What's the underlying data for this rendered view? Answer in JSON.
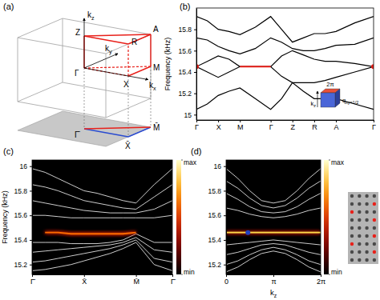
{
  "diagram": {
    "title": "(a)",
    "labels": [
      {
        "text": "Z"
      },
      {
        "text": "A"
      },
      {
        "text": "R"
      },
      {
        "text": "M"
      },
      {
        "text": "Γ"
      },
      {
        "text": "X"
      },
      {
        "text": "k",
        "sub": "z"
      },
      {
        "text": "k",
        "sub": "y"
      },
      {
        "text": "k",
        "sub": "x"
      },
      {
        "text": "Γ̄"
      },
      {
        "text": "X̄"
      },
      {
        "text": "M̄"
      }
    ]
  },
  "chart_data": [
    {
      "type": "line",
      "title": "(b)",
      "y_label": "Frequency (kHz)",
      "x": [
        0,
        0.5,
        1,
        1.5,
        2,
        2.707,
        3.414,
        3.914,
        4.414,
        4.914,
        5.414,
        5.914,
        6.414,
        7.28,
        8.146
      ],
      "xlim": [
        0,
        8.146
      ],
      "ylim": [
        14.95,
        16.0
      ],
      "xticks": [
        {
          "value": 0,
          "label": "Γ"
        },
        {
          "value": 1,
          "label": "X"
        },
        {
          "value": 2,
          "label": "M"
        },
        {
          "value": 3.414,
          "label": "Γ"
        },
        {
          "value": 4.414,
          "label": "Z"
        },
        {
          "value": 5.414,
          "label": "R"
        },
        {
          "value": 6.414,
          "label": "A"
        },
        {
          "value": 8.146,
          "label": "Γ"
        }
      ],
      "yticks": [
        15,
        15.2,
        15.4,
        15.6,
        15.8
      ],
      "series": [
        {
          "color": "#000000",
          "values": [
            15.92,
            15.88,
            15.8,
            15.78,
            15.75,
            15.82,
            15.92,
            15.8,
            15.68,
            15.72,
            15.76,
            15.76,
            15.78,
            15.86,
            15.92
          ]
        },
        {
          "color": "#000000",
          "values": [
            15.72,
            15.7,
            15.64,
            15.6,
            15.57,
            15.62,
            15.72,
            15.68,
            15.62,
            15.6,
            15.6,
            15.62,
            15.65,
            15.66,
            15.72
          ]
        },
        {
          "color": "#000000",
          "values": [
            15.45,
            15.5,
            15.55,
            15.52,
            15.45,
            15.45,
            15.45,
            15.55,
            15.6,
            15.56,
            15.52,
            15.5,
            15.5,
            15.48,
            15.45
          ]
        },
        {
          "color": "#000000",
          "values": [
            15.45,
            15.4,
            15.35,
            15.4,
            15.45,
            15.45,
            15.45,
            15.36,
            15.3,
            15.3,
            15.3,
            15.32,
            15.35,
            15.4,
            15.45
          ]
        },
        {
          "color": "#000000",
          "values": [
            15.05,
            15.1,
            15.18,
            15.22,
            15.25,
            15.15,
            15.05,
            15.15,
            15.3,
            15.22,
            15.15,
            15.15,
            15.15,
            15.1,
            15.05
          ]
        },
        {
          "color": "#e8201a",
          "x": [
            2,
            3.414
          ],
          "values": [
            15.45,
            15.45
          ]
        },
        {
          "type": "scatter",
          "color": "#e8201a",
          "marker": "circle",
          "x": [
            0,
            8.146
          ],
          "values": [
            15.45,
            15.45
          ]
        }
      ],
      "annotations": [
        {
          "text": "2π"
        },
        {
          "text": "k",
          "sub": "z"
        },
        {
          "text": "q",
          "sub": "xy=1/2"
        }
      ]
    },
    {
      "type": "line",
      "title": "(c)",
      "y_label": "Frequency (kHz)",
      "x": [
        0,
        0.25,
        0.5,
        0.75,
        1,
        1.25,
        1.5,
        1.75,
        2,
        2.35,
        2.7
      ],
      "xlim": [
        0,
        2.7
      ],
      "ylim": [
        15.12,
        16.05
      ],
      "xticks": [
        {
          "value": 0,
          "label": "Γ̄"
        },
        {
          "value": 1,
          "label": "X̄"
        },
        {
          "value": 2,
          "label": "M̄"
        },
        {
          "value": 2.7,
          "label": "Γ̄"
        }
      ],
      "yticks": [
        15.2,
        15.4,
        15.6,
        15.8,
        16
      ],
      "colorbar": {
        "range": [
          0,
          1
        ],
        "ticks": [
          {
            "value": 1,
            "label": "max"
          },
          {
            "value": 0,
            "label": "min"
          }
        ]
      },
      "series": [
        {
          "color": "#ffffff",
          "values": [
            15.98,
            15.95,
            15.9,
            15.85,
            15.8,
            15.78,
            15.75,
            15.72,
            15.7,
            15.85,
            15.98
          ]
        },
        {
          "color": "#ffffff",
          "values": [
            15.85,
            15.83,
            15.8,
            15.76,
            15.72,
            15.7,
            15.68,
            15.66,
            15.65,
            15.75,
            15.85
          ]
        },
        {
          "color": "#ffffff",
          "values": [
            15.72,
            15.7,
            15.68,
            15.66,
            15.64,
            15.63,
            15.62,
            15.62,
            15.62,
            15.65,
            15.72
          ]
        },
        {
          "color": "#ffffff",
          "values": [
            15.6,
            15.6,
            15.59,
            15.58,
            15.58,
            15.58,
            15.58,
            15.58,
            15.58,
            15.58,
            15.6
          ]
        },
        {
          "color": "#ffffff",
          "values": [
            15.38,
            15.38,
            15.38,
            15.37,
            15.37,
            15.37,
            15.38,
            15.4,
            15.45,
            15.38,
            15.38
          ]
        },
        {
          "color": "#ffffff",
          "values": [
            15.3,
            15.31,
            15.32,
            15.33,
            15.34,
            15.35,
            15.36,
            15.38,
            15.42,
            15.32,
            15.3
          ]
        },
        {
          "color": "#ffffff",
          "values": [
            15.22,
            15.23,
            15.25,
            15.27,
            15.29,
            15.31,
            15.33,
            15.36,
            15.4,
            15.25,
            15.22
          ]
        },
        {
          "color": "#ffffff",
          "values": [
            15.15,
            15.16,
            15.18,
            15.2,
            15.23,
            15.26,
            15.29,
            15.33,
            15.38,
            15.2,
            15.15
          ]
        },
        {
          "color": "#ff6a00",
          "line_style": "glow",
          "values": [
            null,
            15.46,
            15.46,
            15.45,
            15.45,
            15.45,
            15.45,
            15.45,
            15.46,
            null,
            null
          ]
        }
      ]
    },
    {
      "type": "line",
      "title": "(d)",
      "x_label": {
        "text": "k",
        "sub": "z"
      },
      "x": [
        0,
        0.785,
        1.571,
        2.356,
        3.142,
        3.927,
        4.712,
        5.498,
        6.283
      ],
      "xlim": [
        0,
        6.283
      ],
      "ylim": [
        15.12,
        16.05
      ],
      "xticks": [
        0,
        {
          "value": 3.142,
          "label": "π"
        },
        {
          "value": 6.283,
          "label": "2π"
        }
      ],
      "yticks": [
        15.2,
        15.4,
        15.6,
        15.8,
        16
      ],
      "colorbar": {
        "range": [
          0,
          1
        ],
        "ticks": [
          {
            "value": 1,
            "label": "max"
          },
          {
            "value": 0,
            "label": "min"
          }
        ]
      },
      "series": [
        {
          "color": "#ffffff",
          "values": [
            15.98,
            15.9,
            15.8,
            15.72,
            15.7,
            15.72,
            15.8,
            15.9,
            15.98
          ]
        },
        {
          "color": "#ffffff",
          "values": [
            15.88,
            15.82,
            15.74,
            15.68,
            15.66,
            15.68,
            15.74,
            15.82,
            15.88
          ]
        },
        {
          "color": "#ffffff",
          "values": [
            15.78,
            15.73,
            15.67,
            15.63,
            15.62,
            15.63,
            15.67,
            15.73,
            15.78
          ]
        },
        {
          "color": "#ffffff",
          "values": [
            15.66,
            15.64,
            15.61,
            15.59,
            15.58,
            15.59,
            15.61,
            15.64,
            15.66
          ]
        },
        {
          "color": "#ffffff",
          "values": [
            15.36,
            15.37,
            15.38,
            15.39,
            15.4,
            15.39,
            15.38,
            15.37,
            15.36
          ]
        },
        {
          "color": "#ffffff",
          "values": [
            15.28,
            15.3,
            15.33,
            15.36,
            15.37,
            15.36,
            15.33,
            15.3,
            15.28
          ]
        },
        {
          "color": "#ffffff",
          "values": [
            15.2,
            15.23,
            15.28,
            15.32,
            15.34,
            15.32,
            15.28,
            15.23,
            15.2
          ]
        },
        {
          "color": "#ffffff",
          "values": [
            15.14,
            15.18,
            15.24,
            15.29,
            15.31,
            15.29,
            15.24,
            15.18,
            15.14
          ]
        },
        {
          "color": "#ffd84a",
          "line_style": "glow",
          "values": [
            15.46,
            15.46,
            15.46,
            15.46,
            15.46,
            15.46,
            15.46,
            15.46,
            15.46
          ]
        },
        {
          "type": "scatter",
          "color": "#2040c0",
          "marker": "circle",
          "x": [
            1.45
          ],
          "values": [
            15.46
          ]
        }
      ]
    }
  ]
}
